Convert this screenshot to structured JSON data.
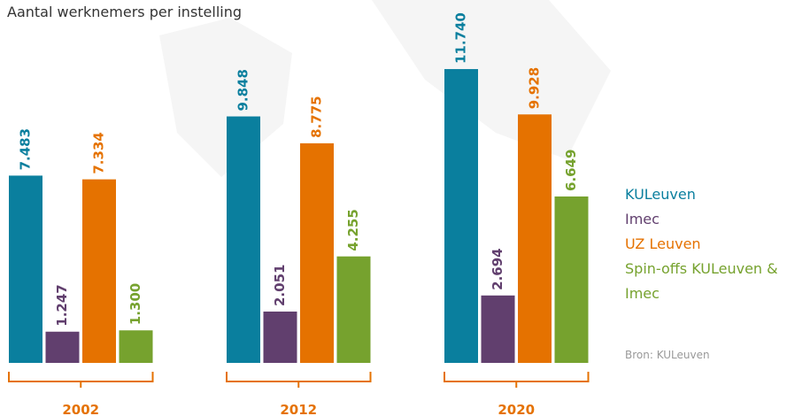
{
  "chart_data": {
    "type": "bar",
    "title": "Aantal werknemers per instelling",
    "categories": [
      "2002",
      "2012",
      "2020"
    ],
    "series": [
      {
        "name": "KULeuven",
        "color": "#0a7f9e",
        "values": [
          7483,
          9848,
          11740
        ],
        "value_labels": [
          "7.483",
          "9.848",
          "11.740"
        ]
      },
      {
        "name": "Imec",
        "color": "#613f6e",
        "values": [
          1247,
          2051,
          2694
        ],
        "value_labels": [
          "1.247",
          "2.051",
          "2.694"
        ]
      },
      {
        "name": "UZ Leuven",
        "color": "#e57200",
        "values": [
          7334,
          8775,
          9928
        ],
        "value_labels": [
          "7.334",
          "8.775",
          "9.928"
        ]
      },
      {
        "name": "Spin-offs KULeuven & Imec",
        "color": "#76a22e",
        "values": [
          1300,
          4255,
          6649
        ],
        "value_labels": [
          "1.300",
          "4.255",
          "6.649"
        ]
      }
    ],
    "ylim": [
      0,
      14500
    ],
    "source": "Bron: KULeuven",
    "bracket_color": "#e57200"
  }
}
